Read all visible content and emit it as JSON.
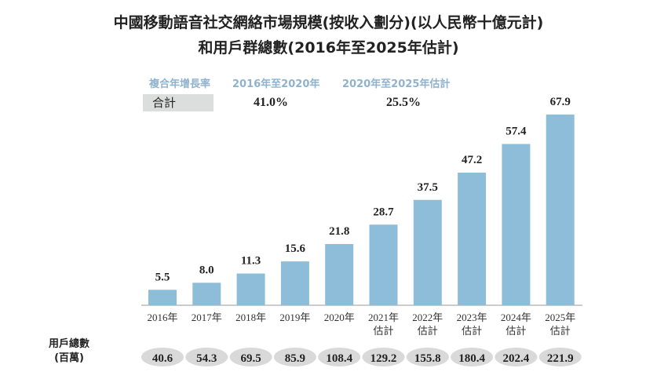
{
  "chart_data": {
    "type": "bar",
    "title": [
      "中國移動語音社交網絡市場規模(按收入劃分)(以人民幣十億元計)",
      "和用戶群總數(2016年至2025年估計)"
    ],
    "categories": [
      [
        "2016年"
      ],
      [
        "2017年"
      ],
      [
        "2018年"
      ],
      [
        "2019年"
      ],
      [
        "2020年"
      ],
      [
        "2021年",
        "估計"
      ],
      [
        "2022年",
        "估計"
      ],
      [
        "2023年",
        "估計"
      ],
      [
        "2024年",
        "估計"
      ],
      [
        "2025年",
        "估計"
      ]
    ],
    "values": [
      5.5,
      8.0,
      11.3,
      15.6,
      21.8,
      28.7,
      37.5,
      47.2,
      57.4,
      67.9
    ],
    "bar_color": "#8dbdd8",
    "cagr": {
      "label": "複合年增長率",
      "periods": [
        "2016年至2020年",
        "2020年至2025年估計"
      ],
      "row_label": "合計",
      "values": [
        "41.0%",
        "25.5%"
      ]
    },
    "users": {
      "label": [
        "用戶總數",
        "(百萬)"
      ],
      "values": [
        "40.6",
        "54.3",
        "69.5",
        "85.9",
        "108.4",
        "129.2",
        "155.8",
        "180.4",
        "202.4",
        "221.9"
      ]
    }
  }
}
